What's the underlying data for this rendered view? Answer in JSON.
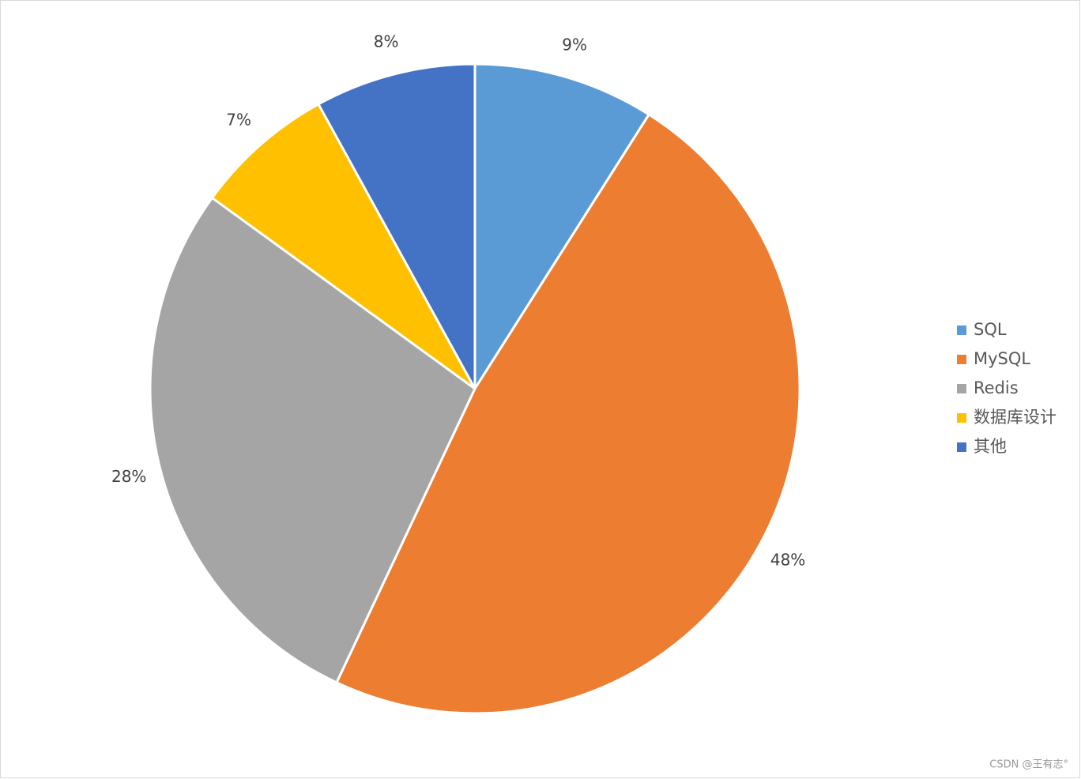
{
  "chart_data": {
    "type": "pie",
    "categories": [
      "SQL",
      "MySQL",
      "Redis",
      "数据库设计",
      "其他"
    ],
    "values": [
      9,
      48,
      28,
      7,
      8
    ],
    "value_labels": [
      "9%",
      "48%",
      "28%",
      "7%",
      "8%"
    ],
    "colors": [
      "#5b9bd5",
      "#ed7d31",
      "#a5a5a5",
      "#ffc000",
      "#4472c4"
    ],
    "legend": "right"
  },
  "watermark": "CSDN @王有志°"
}
